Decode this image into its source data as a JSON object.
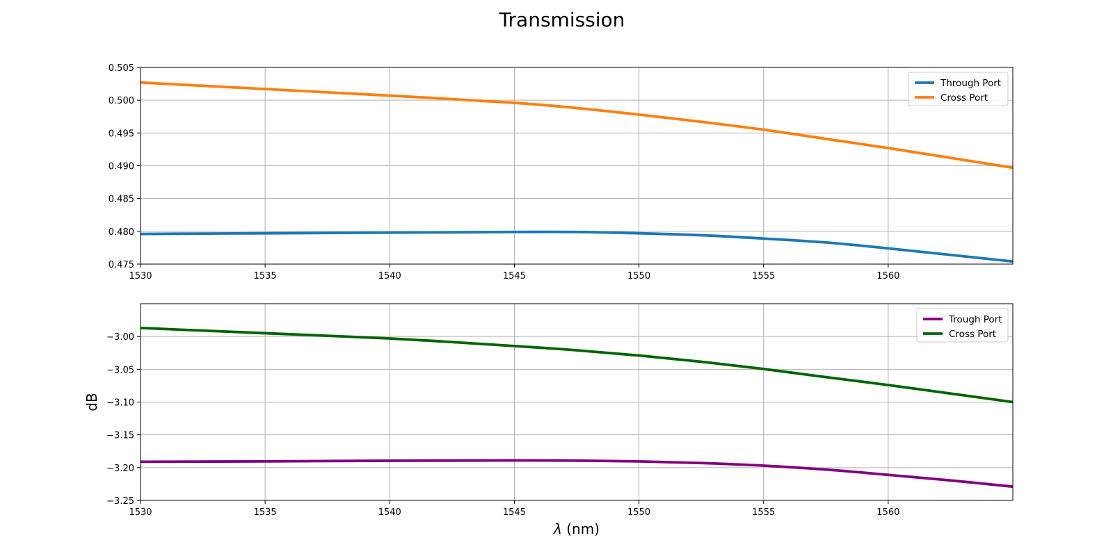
{
  "figure": {
    "title": "Transmission"
  },
  "chart_data": [
    {
      "type": "line",
      "title": "",
      "xlabel": "",
      "ylabel": "",
      "xlim": [
        1530,
        1565
      ],
      "ylim": [
        0.475,
        0.505
      ],
      "xticks": [
        1530,
        1535,
        1540,
        1545,
        1550,
        1555,
        1560
      ],
      "xtick_labels": [
        "1530",
        "1535",
        "1540",
        "1545",
        "1550",
        "1555",
        "1560"
      ],
      "yticks": [
        0.475,
        0.48,
        0.485,
        0.49,
        0.495,
        0.5,
        0.505
      ],
      "ytick_labels": [
        "0.475",
        "0.480",
        "0.485",
        "0.490",
        "0.495",
        "0.500",
        "0.505"
      ],
      "grid": true,
      "legend_position": "top-right",
      "series": [
        {
          "name": "Through Port",
          "color": "#1f77b4",
          "x": [
            1530,
            1535,
            1540,
            1545,
            1547.5,
            1550,
            1552.5,
            1555,
            1557.5,
            1560,
            1562.5,
            1565
          ],
          "y": [
            0.4796,
            0.4797,
            0.4798,
            0.4799,
            0.4799,
            0.4797,
            0.4794,
            0.4789,
            0.4783,
            0.4774,
            0.4764,
            0.4754
          ]
        },
        {
          "name": "Cross Port",
          "color": "#ff7f0e",
          "x": [
            1530,
            1535,
            1540,
            1545,
            1547.5,
            1550,
            1552.5,
            1555,
            1557.5,
            1560,
            1562.5,
            1565
          ],
          "y": [
            0.5027,
            0.5017,
            0.5007,
            0.4996,
            0.4988,
            0.4978,
            0.4967,
            0.4955,
            0.4941,
            0.4927,
            0.4912,
            0.4897
          ]
        }
      ]
    },
    {
      "type": "line",
      "title": "",
      "xlabel": "λ (nm)",
      "ylabel": "dB",
      "xlim": [
        1530,
        1565
      ],
      "ylim": [
        -3.25,
        -2.95
      ],
      "xticks": [
        1530,
        1535,
        1540,
        1545,
        1550,
        1555,
        1560
      ],
      "xtick_labels": [
        "1530",
        "1535",
        "1540",
        "1545",
        "1550",
        "1555",
        "1560"
      ],
      "yticks": [
        -3.25,
        -3.2,
        -3.15,
        -3.1,
        -3.05,
        -3.0
      ],
      "ytick_labels": [
        "−3.25",
        "−3.20",
        "−3.15",
        "−3.10",
        "−3.05",
        "−3.00"
      ],
      "grid": true,
      "legend_position": "top-right",
      "series": [
        {
          "name": "Trough Port",
          "color": "#800080",
          "x": [
            1530,
            1535,
            1540,
            1545,
            1547.5,
            1550,
            1552.5,
            1555,
            1557.5,
            1560,
            1562.5,
            1565
          ],
          "y": [
            -3.191,
            -3.1905,
            -3.1895,
            -3.189,
            -3.1893,
            -3.1905,
            -3.193,
            -3.197,
            -3.203,
            -3.211,
            -3.2195,
            -3.229
          ]
        },
        {
          "name": "Cross Port",
          "color": "#006400",
          "x": [
            1530,
            1535,
            1540,
            1545,
            1547.5,
            1550,
            1552.5,
            1555,
            1557.5,
            1560,
            1562.5,
            1565
          ],
          "y": [
            -2.987,
            -2.995,
            -3.003,
            -3.0145,
            -3.021,
            -3.029,
            -3.0385,
            -3.0495,
            -3.062,
            -3.074,
            -3.087,
            -3.1
          ]
        }
      ]
    }
  ]
}
